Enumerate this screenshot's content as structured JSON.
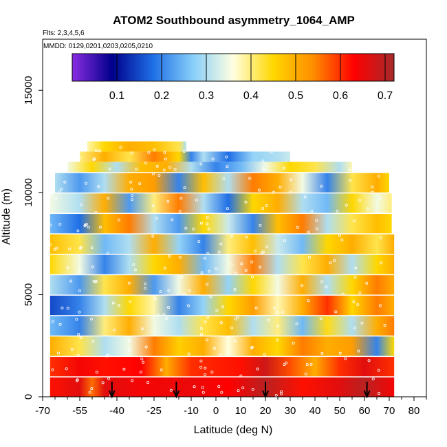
{
  "chart_data": {
    "type": "heatmap",
    "title": "ATOM2 Southbound asymmetry_1064_AMP",
    "flights_note": "Flts: 2,3,4,5,6",
    "dates_note": "MMDD: 0129,0201,0203,0205,0210",
    "xlabel": "Latitude (deg N)",
    "ylabel": "Altitude (m)",
    "xlim": [
      -70,
      85
    ],
    "ylim": [
      0,
      17500
    ],
    "x_ticks": [
      -70,
      -55,
      -40,
      -25,
      -10,
      0,
      10,
      20,
      30,
      40,
      50,
      60,
      70,
      80
    ],
    "x_tick_labels": [
      "-70",
      "-55",
      "-40",
      "-25",
      "-10",
      "0",
      "10",
      "20",
      "30",
      "40",
      "50",
      "60",
      "70",
      "80"
    ],
    "x_minor_ticks": [
      -65,
      -60,
      -50,
      -45,
      -35,
      -30,
      -20,
      -15,
      -5,
      5,
      15,
      25,
      35,
      45,
      55,
      65,
      75,
      85
    ],
    "y_ticks": [
      0,
      5000,
      10000,
      15000
    ],
    "y_tick_labels": [
      "0",
      "5000",
      "10000",
      "15000"
    ],
    "colorbar": {
      "range": [
        0,
        0.72
      ],
      "ticks": [
        0.1,
        0.2,
        0.3,
        0.4,
        0.5,
        0.6,
        0.7
      ],
      "tick_labels": [
        "0.1",
        "0.2",
        "0.3",
        "0.4",
        "0.5",
        "0.6",
        "0.7"
      ],
      "segments": [
        "#8a2be2",
        "#00008b",
        "#1e6ee6",
        "#87cefa",
        "#ffffe0",
        "#ffd700",
        "#ff8c00",
        "#ff0000",
        "#a52a2a"
      ]
    },
    "band_height_m": 1000,
    "bands": [
      {
        "alt": 0,
        "x0": -67,
        "x1": 72,
        "stops": [
          [
            -67,
            0.62
          ],
          [
            -55,
            0.66
          ],
          [
            -50,
            0.56
          ],
          [
            -45,
            0.66
          ],
          [
            -30,
            0.64
          ],
          [
            -10,
            0.65
          ],
          [
            5,
            0.63
          ],
          [
            20,
            0.7
          ],
          [
            35,
            0.62
          ],
          [
            50,
            0.66
          ],
          [
            60,
            0.7
          ],
          [
            72,
            0.64
          ]
        ]
      },
      {
        "alt": 1000,
        "x0": -67,
        "x1": 72,
        "stops": [
          [
            -67,
            0.6
          ],
          [
            -55,
            0.64
          ],
          [
            -45,
            0.62
          ],
          [
            -30,
            0.63
          ],
          [
            -20,
            0.5
          ],
          [
            -10,
            0.6
          ],
          [
            10,
            0.62
          ],
          [
            20,
            0.68
          ],
          [
            30,
            0.58
          ],
          [
            40,
            0.5
          ],
          [
            50,
            0.6
          ],
          [
            60,
            0.66
          ],
          [
            72,
            0.6
          ]
        ]
      },
      {
        "alt": 2000,
        "x0": -67,
        "x1": 72,
        "stops": [
          [
            -67,
            0.5
          ],
          [
            -55,
            0.42
          ],
          [
            -45,
            0.3
          ],
          [
            -35,
            0.35
          ],
          [
            -25,
            0.55
          ],
          [
            -15,
            0.46
          ],
          [
            -5,
            0.5
          ],
          [
            5,
            0.36
          ],
          [
            15,
            0.5
          ],
          [
            25,
            0.45
          ],
          [
            35,
            0.55
          ],
          [
            45,
            0.5
          ],
          [
            55,
            0.52
          ],
          [
            65,
            0.2
          ],
          [
            72,
            0.45
          ]
        ]
      },
      {
        "alt": 3000,
        "x0": -67,
        "x1": 72,
        "stops": [
          [
            -67,
            0.25
          ],
          [
            -55,
            0.2
          ],
          [
            -45,
            0.4
          ],
          [
            -35,
            0.5
          ],
          [
            -25,
            0.35
          ],
          [
            -15,
            0.3
          ],
          [
            -5,
            0.42
          ],
          [
            5,
            0.48
          ],
          [
            15,
            0.3
          ],
          [
            25,
            0.4
          ],
          [
            35,
            0.25
          ],
          [
            45,
            0.44
          ],
          [
            55,
            0.3
          ],
          [
            65,
            0.5
          ],
          [
            72,
            0.55
          ]
        ]
      },
      {
        "alt": 4000,
        "x0": -67,
        "x1": 72,
        "stops": [
          [
            -67,
            0.15
          ],
          [
            -55,
            0.2
          ],
          [
            -45,
            0.3
          ],
          [
            -35,
            0.45
          ],
          [
            -25,
            0.38
          ],
          [
            -15,
            0.2
          ],
          [
            -5,
            0.28
          ],
          [
            5,
            0.45
          ],
          [
            15,
            0.52
          ],
          [
            25,
            0.38
          ],
          [
            35,
            0.5
          ],
          [
            45,
            0.6
          ],
          [
            55,
            0.45
          ],
          [
            65,
            0.55
          ],
          [
            72,
            0.5
          ]
        ]
      },
      {
        "alt": 5000,
        "x0": -67,
        "x1": 72,
        "stops": [
          [
            -67,
            0.3
          ],
          [
            -55,
            0.22
          ],
          [
            -45,
            0.42
          ],
          [
            -35,
            0.5
          ],
          [
            -25,
            0.22
          ],
          [
            -15,
            0.35
          ],
          [
            -5,
            0.5
          ],
          [
            5,
            0.28
          ],
          [
            15,
            0.45
          ],
          [
            25,
            0.35
          ],
          [
            35,
            0.5
          ],
          [
            45,
            0.3
          ],
          [
            55,
            0.45
          ],
          [
            65,
            0.55
          ],
          [
            72,
            0.5
          ]
        ]
      },
      {
        "alt": 6000,
        "x0": -67,
        "x1": 72,
        "stops": [
          [
            -67,
            0.45
          ],
          [
            -55,
            0.35
          ],
          [
            -45,
            0.2
          ],
          [
            -35,
            0.3
          ],
          [
            -25,
            0.45
          ],
          [
            -15,
            0.5
          ],
          [
            -5,
            0.25
          ],
          [
            5,
            0.35
          ],
          [
            15,
            0.55
          ],
          [
            25,
            0.3
          ],
          [
            35,
            0.42
          ],
          [
            45,
            0.5
          ],
          [
            55,
            0.3
          ],
          [
            65,
            0.45
          ],
          [
            72,
            0.5
          ]
        ]
      },
      {
        "alt": 7000,
        "x0": -67,
        "x1": 72,
        "stops": [
          [
            -67,
            0.48
          ],
          [
            -55,
            0.42
          ],
          [
            -45,
            0.25
          ],
          [
            -35,
            0.3
          ],
          [
            -25,
            0.5
          ],
          [
            -15,
            0.28
          ],
          [
            -5,
            0.2
          ],
          [
            5,
            0.4
          ],
          [
            15,
            0.48
          ],
          [
            25,
            0.32
          ],
          [
            35,
            0.25
          ],
          [
            45,
            0.45
          ],
          [
            55,
            0.5
          ],
          [
            65,
            0.42
          ],
          [
            72,
            0.5
          ]
        ]
      },
      {
        "alt": 8000,
        "x0": -67,
        "x1": 71,
        "stops": [
          [
            -67,
            0.25
          ],
          [
            -55,
            0.18
          ],
          [
            -45,
            0.48
          ],
          [
            -35,
            0.55
          ],
          [
            -25,
            0.3
          ],
          [
            -15,
            0.22
          ],
          [
            -5,
            0.45
          ],
          [
            5,
            0.32
          ],
          [
            15,
            0.2
          ],
          [
            25,
            0.48
          ],
          [
            35,
            0.55
          ],
          [
            45,
            0.3
          ],
          [
            55,
            0.42
          ],
          [
            65,
            0.48
          ],
          [
            71,
            0.45
          ]
        ]
      },
      {
        "alt": 9000,
        "x0": -67,
        "x1": 71,
        "stops": [
          [
            -67,
            0.35
          ],
          [
            -55,
            0.3
          ],
          [
            -45,
            0.5
          ],
          [
            -35,
            0.22
          ],
          [
            -25,
            0.4
          ],
          [
            -15,
            0.55
          ],
          [
            -5,
            0.3
          ],
          [
            5,
            0.18
          ],
          [
            15,
            0.45
          ],
          [
            25,
            0.5
          ],
          [
            35,
            0.3
          ],
          [
            45,
            0.25
          ],
          [
            55,
            0.45
          ],
          [
            65,
            0.35
          ],
          [
            71,
            0.4
          ]
        ]
      },
      {
        "alt": 10000,
        "x0": -65,
        "x1": 70,
        "stops": [
          [
            -65,
            0.3
          ],
          [
            -55,
            0.22
          ],
          [
            -45,
            0.3
          ],
          [
            -35,
            0.5
          ],
          [
            -25,
            0.52
          ],
          [
            -15,
            0.2
          ],
          [
            -5,
            0.48
          ],
          [
            5,
            0.3
          ],
          [
            15,
            0.55
          ],
          [
            25,
            0.5
          ],
          [
            35,
            0.35
          ],
          [
            45,
            0.2
          ],
          [
            55,
            0.42
          ],
          [
            65,
            0.5
          ],
          [
            70,
            0.45
          ]
        ]
      },
      {
        "alt": 11000,
        "x0": -60,
        "x1": 55,
        "stops": [
          [
            -60,
            0.35
          ],
          [
            -50,
            0.45
          ],
          [
            -40,
            0.3
          ],
          [
            -30,
            0.48
          ],
          [
            -20,
            0.5
          ],
          [
            -10,
            0.3
          ],
          [
            0,
            0.2
          ],
          [
            10,
            0.25
          ],
          [
            20,
            0.35
          ],
          [
            30,
            0.45
          ],
          [
            40,
            0.42
          ],
          [
            50,
            0.3
          ],
          [
            55,
            0.38
          ]
        ]
      },
      {
        "alt": 11500,
        "x0": -55,
        "x1": 30,
        "stops": [
          [
            -55,
            0.4
          ],
          [
            -45,
            0.5
          ],
          [
            -35,
            0.42
          ],
          [
            -25,
            0.55
          ],
          [
            -15,
            0.45
          ],
          [
            -10,
            0.2
          ],
          [
            -5,
            0.3
          ],
          [
            5,
            0.18
          ],
          [
            15,
            0.28
          ],
          [
            25,
            0.3
          ],
          [
            30,
            0.32
          ]
        ]
      },
      {
        "alt": 12000,
        "x0": -52,
        "x1": -12,
        "stops": [
          [
            -52,
            0.38
          ],
          [
            -45,
            0.45
          ],
          [
            -35,
            0.5
          ],
          [
            -25,
            0.48
          ],
          [
            -15,
            0.42
          ],
          [
            -12,
            0.3
          ]
        ]
      }
    ],
    "marker_latitudes": [
      -42,
      -16,
      20,
      61
    ]
  }
}
